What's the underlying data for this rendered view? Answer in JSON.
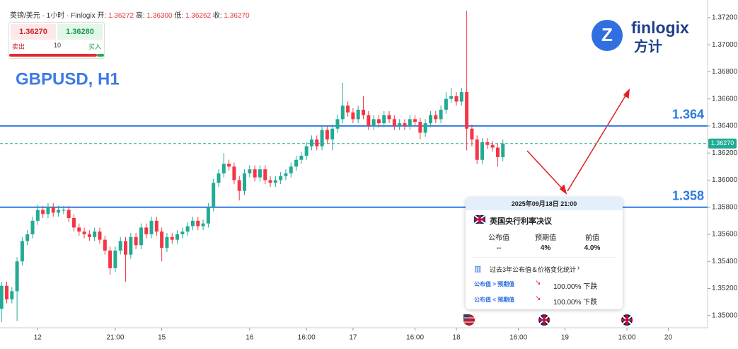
{
  "header": {
    "symbol": "英镑/美元 · 1小时 · Finlogix",
    "open_label": "开:",
    "open": 1.36272,
    "high_label": "高:",
    "high": 1.363,
    "high_text": "1.36300",
    "low_label": "低:",
    "low": 1.36262,
    "close_label": "收:",
    "close": 1.3627,
    "close_text": "1.36270"
  },
  "trade": {
    "sell_price": "1.36270",
    "buy_price": "1.36280",
    "sell": "卖出",
    "quantity": "10",
    "buy": "买入"
  },
  "logo": {
    "name": "finlogix",
    "chinese": "方计"
  },
  "chart_data": {
    "type": "candlestick",
    "title": "GBPUSD, H1",
    "up_color": "#22ab94",
    "down_color": "#f23645",
    "open": [
      1.3505,
      1.3522,
      1.3512,
      1.3518,
      1.354,
      1.3555,
      1.356,
      1.357,
      1.3578,
      1.3575,
      1.358,
      1.3576,
      1.3578,
      1.3578,
      1.3572,
      1.3565,
      1.3562,
      1.356,
      1.3558,
      1.3562,
      1.3556,
      1.3548,
      1.3535,
      1.3548,
      1.3555,
      1.3545,
      1.3558,
      1.3552,
      1.3565,
      1.356,
      1.357,
      1.3562,
      1.355,
      1.3558,
      1.3556,
      1.356,
      1.3562,
      1.3566,
      1.357,
      1.3566,
      1.3568,
      1.358,
      1.3598,
      1.3605,
      1.3612,
      1.361,
      1.36,
      1.3592,
      1.3605,
      1.3608,
      1.3602,
      1.3608,
      1.36,
      1.3598,
      1.36,
      1.3603,
      1.3605,
      1.361,
      1.3615,
      1.3618,
      1.3625,
      1.363,
      1.3625,
      1.3637,
      1.363,
      1.3638,
      1.3645,
      1.3655,
      1.365,
      1.3645,
      1.3652,
      1.3648,
      1.364,
      1.3645,
      1.3642,
      1.3648,
      1.3645,
      1.364,
      1.3642,
      1.364,
      1.3645,
      1.3643,
      1.3635,
      1.3642,
      1.3648,
      1.3645,
      1.3652,
      1.366,
      1.3662,
      1.3658,
      1.3665,
      1.3638,
      1.363,
      1.3615,
      1.3628,
      1.3626,
      1.3624,
      1.3617
    ],
    "high": [
      1.3525,
      1.3525,
      1.3521,
      1.3543,
      1.3558,
      1.3563,
      1.3573,
      1.3582,
      1.3581,
      1.3583,
      1.3583,
      1.3581,
      1.3581,
      1.3581,
      1.3575,
      1.3568,
      1.3565,
      1.3563,
      1.3565,
      1.3565,
      1.3559,
      1.3551,
      1.3551,
      1.3558,
      1.3558,
      1.3561,
      1.3561,
      1.3568,
      1.3568,
      1.3573,
      1.3573,
      1.3565,
      1.3561,
      1.3561,
      1.3563,
      1.3565,
      1.3569,
      1.3573,
      1.3573,
      1.3571,
      1.3583,
      1.3601,
      1.3608,
      1.362,
      1.3615,
      1.3613,
      1.3603,
      1.3608,
      1.3611,
      1.3611,
      1.3611,
      1.3611,
      1.3603,
      1.3603,
      1.3606,
      1.3608,
      1.3613,
      1.3618,
      1.3621,
      1.3628,
      1.3633,
      1.3633,
      1.364,
      1.364,
      1.3641,
      1.3648,
      1.3672,
      1.3658,
      1.3653,
      1.3655,
      1.3662,
      1.3651,
      1.3648,
      1.3648,
      1.3651,
      1.3651,
      1.3648,
      1.3645,
      1.3645,
      1.3648,
      1.3648,
      1.3646,
      1.3645,
      1.3651,
      1.3651,
      1.3655,
      1.3665,
      1.3668,
      1.3665,
      1.3668,
      1.3725,
      1.3641,
      1.3633,
      1.3631,
      1.3631,
      1.3629,
      1.3627,
      1.363
    ],
    "low": [
      1.3495,
      1.3509,
      1.3509,
      1.3496,
      1.3537,
      1.3552,
      1.3557,
      1.3567,
      1.3572,
      1.3572,
      1.3573,
      1.3573,
      1.3575,
      1.3569,
      1.3562,
      1.3559,
      1.3557,
      1.3555,
      1.3555,
      1.3553,
      1.3545,
      1.353,
      1.3532,
      1.3545,
      1.3525,
      1.3542,
      1.3549,
      1.3549,
      1.3557,
      1.3557,
      1.3559,
      1.354,
      1.3547,
      1.3553,
      1.3553,
      1.3557,
      1.3559,
      1.3563,
      1.3563,
      1.3563,
      1.3565,
      1.3577,
      1.3595,
      1.3602,
      1.3607,
      1.3597,
      1.3585,
      1.3589,
      1.3602,
      1.3599,
      1.3599,
      1.3597,
      1.3595,
      1.3595,
      1.3597,
      1.36,
      1.3602,
      1.3607,
      1.3612,
      1.3615,
      1.3622,
      1.3622,
      1.3622,
      1.3627,
      1.3622,
      1.3635,
      1.3642,
      1.3647,
      1.3642,
      1.3642,
      1.3645,
      1.3637,
      1.3637,
      1.3639,
      1.3639,
      1.3642,
      1.3637,
      1.3637,
      1.3637,
      1.3637,
      1.364,
      1.363,
      1.3632,
      1.3639,
      1.3642,
      1.3642,
      1.3649,
      1.3657,
      1.3655,
      1.3655,
      1.3622,
      1.3625,
      1.3612,
      1.3612,
      1.3623,
      1.3621,
      1.361,
      1.3614
    ],
    "close": [
      1.3522,
      1.3512,
      1.3518,
      1.354,
      1.3555,
      1.356,
      1.357,
      1.3578,
      1.3575,
      1.358,
      1.3576,
      1.3578,
      1.3578,
      1.3572,
      1.3565,
      1.3562,
      1.356,
      1.3558,
      1.3562,
      1.3556,
      1.3548,
      1.3535,
      1.3548,
      1.3555,
      1.3545,
      1.3558,
      1.3552,
      1.3565,
      1.356,
      1.357,
      1.3562,
      1.355,
      1.3558,
      1.3556,
      1.356,
      1.3562,
      1.3566,
      1.357,
      1.3566,
      1.3568,
      1.358,
      1.3598,
      1.3605,
      1.3612,
      1.361,
      1.36,
      1.3592,
      1.3605,
      1.3608,
      1.3602,
      1.3608,
      1.36,
      1.3598,
      1.36,
      1.3603,
      1.3605,
      1.361,
      1.3615,
      1.3618,
      1.3625,
      1.363,
      1.3625,
      1.3637,
      1.363,
      1.3638,
      1.3645,
      1.3655,
      1.365,
      1.3645,
      1.3652,
      1.3648,
      1.364,
      1.3645,
      1.3642,
      1.3648,
      1.3645,
      1.364,
      1.3642,
      1.364,
      1.3645,
      1.3643,
      1.3635,
      1.3642,
      1.3648,
      1.3645,
      1.3652,
      1.366,
      1.3662,
      1.3658,
      1.3665,
      1.3638,
      1.363,
      1.3615,
      1.3628,
      1.3626,
      1.3624,
      1.3617,
      1.3627
    ],
    "xlim": [
      -0.3,
      136.6
    ],
    "xticks": [
      {
        "value": 7,
        "label": "12"
      },
      {
        "value": 22,
        "label": "21:00"
      },
      {
        "value": 31,
        "label": "15"
      },
      {
        "value": 48,
        "label": "16"
      },
      {
        "value": 59,
        "label": "16:00"
      },
      {
        "value": 68,
        "label": "17"
      },
      {
        "value": 80,
        "label": "16:00"
      },
      {
        "value": 88,
        "label": "18"
      },
      {
        "value": 100,
        "label": "16:00"
      },
      {
        "value": 109,
        "label": "19"
      },
      {
        "value": 121,
        "label": "16:00"
      },
      {
        "value": 129,
        "label": "20"
      }
    ],
    "ylim": [
      1.3491,
      1.3733
    ],
    "yticks": [
      {
        "value": 1.35,
        "label": "1.35000"
      },
      {
        "value": 1.352,
        "label": "1.35200"
      },
      {
        "value": 1.354,
        "label": "1.35400"
      },
      {
        "value": 1.356,
        "label": "1.35600"
      },
      {
        "value": 1.358,
        "label": "1.35800"
      },
      {
        "value": 1.36,
        "label": "1.36000"
      },
      {
        "value": 1.362,
        "label": "1.36200"
      },
      {
        "value": 1.364,
        "label": "1.36400"
      },
      {
        "value": 1.366,
        "label": "1.36600"
      },
      {
        "value": 1.368,
        "label": "1.36800"
      },
      {
        "value": 1.37,
        "label": "1.37000"
      },
      {
        "value": 1.372,
        "label": "1.37200"
      }
    ],
    "levels": [
      1.364,
      1.358
    ],
    "level_color": "#2e7be0",
    "last_price": 1.3627,
    "last_price_label": "1.36270"
  },
  "event": {
    "time": "2025年09月18日 21:00",
    "name": "英国央行利率决议",
    "columns": [
      "公布值",
      "预期值",
      "前值"
    ],
    "values": [
      "--",
      "4%",
      "4.0%"
    ],
    "stats_link": "过去3年公布值＆价格变化统计",
    "rows": [
      {
        "condition": "公布值 > 预期值",
        "result": "100.00% 下跌"
      },
      {
        "condition": "公布值 < 预期值",
        "result": "100.00% 下跌"
      }
    ]
  }
}
